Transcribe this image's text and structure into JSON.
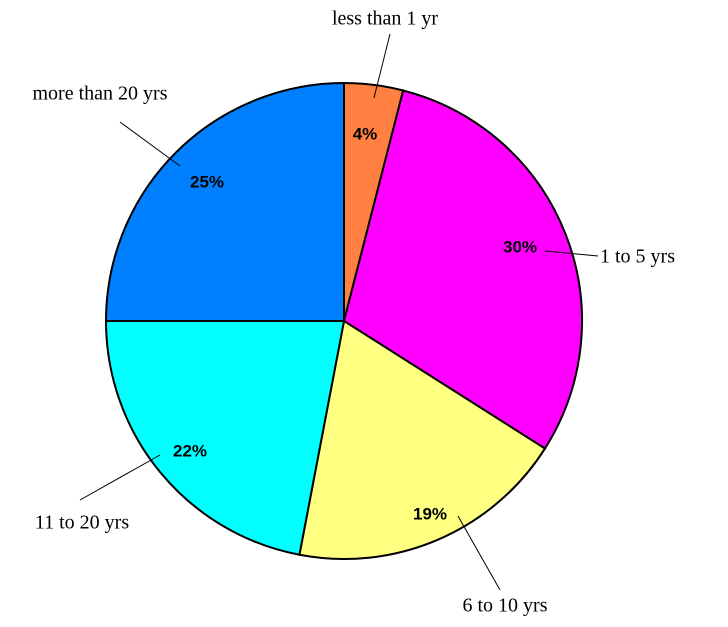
{
  "chart_data": {
    "type": "pie",
    "categories": [
      "less than 1 yr",
      "1 to 5 yrs",
      "6 to 10 yrs",
      "11 to 20 yrs",
      "more than 20 yrs"
    ],
    "values": [
      4,
      30,
      19,
      22,
      25
    ],
    "value_labels": [
      "4%",
      "30%",
      "19%",
      "22%",
      "25%"
    ],
    "colors": [
      "#ff8040",
      "#ff00ff",
      "#ffff80",
      "#00ffff",
      "#0080ff"
    ]
  }
}
